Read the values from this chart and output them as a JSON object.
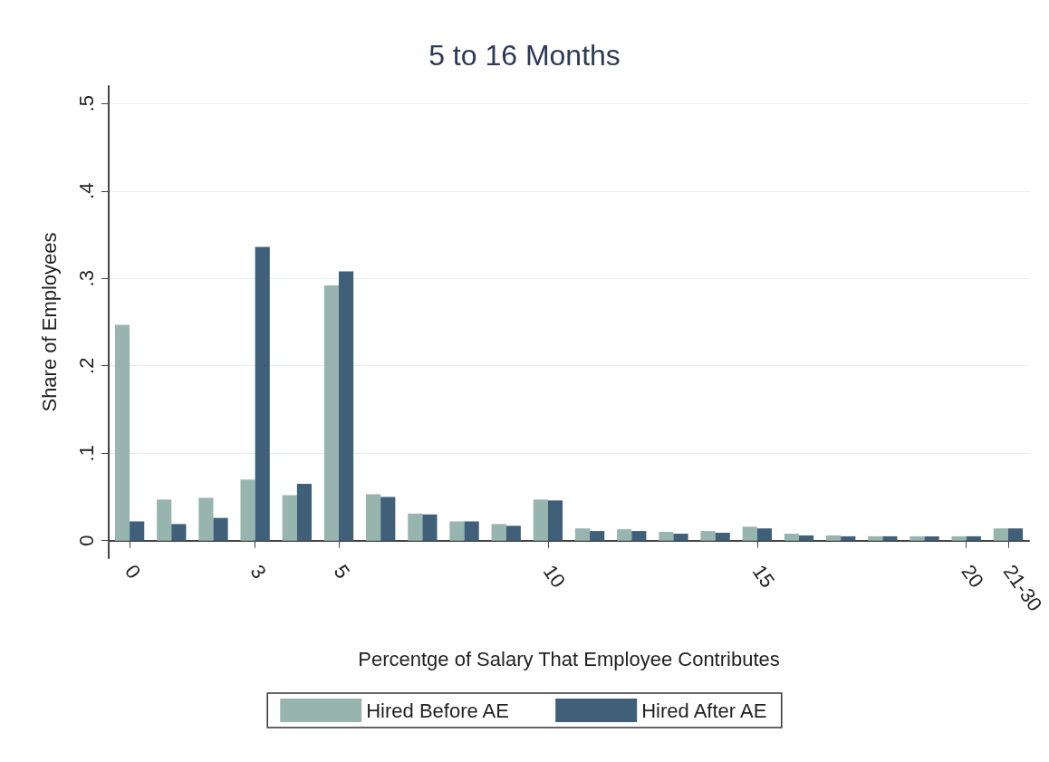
{
  "chart_data": {
    "type": "bar",
    "title": "5 to 16 Months",
    "xlabel": "Percentge of Salary That Employee Contributes",
    "ylabel": "Share of Employees",
    "categories": [
      "0",
      null,
      null,
      "3",
      null,
      "5",
      null,
      null,
      null,
      null,
      "10",
      null,
      null,
      null,
      null,
      "15",
      null,
      null,
      null,
      null,
      "20",
      "21-30"
    ],
    "series": [
      {
        "name": "Hired Before AE",
        "color": "#98b4ae",
        "values": [
          0.247,
          0.047,
          0.049,
          0.07,
          0.052,
          0.292,
          0.053,
          0.031,
          0.022,
          0.019,
          0.047,
          0.014,
          0.013,
          0.01,
          0.011,
          0.016,
          0.008,
          0.006,
          0.005,
          0.005,
          0.005,
          0.014
        ]
      },
      {
        "name": "Hired After AE",
        "color": "#3f6078",
        "values": [
          0.022,
          0.019,
          0.026,
          0.336,
          0.065,
          0.308,
          0.05,
          0.03,
          0.022,
          0.017,
          0.046,
          0.011,
          0.011,
          0.008,
          0.009,
          0.014,
          0.006,
          0.005,
          0.005,
          0.005,
          0.005,
          0.014
        ]
      }
    ],
    "ylim": [
      -0.02,
      0.52
    ],
    "yticks": [
      {
        "value": 0,
        "label": "0"
      },
      {
        "value": 0.1,
        "label": ".1"
      },
      {
        "value": 0.2,
        "label": ".2"
      },
      {
        "value": 0.3,
        "label": ".3"
      },
      {
        "value": 0.4,
        "label": ".4"
      },
      {
        "value": 0.5,
        "label": ".5"
      }
    ],
    "grid": "y",
    "legend": "bottom"
  }
}
